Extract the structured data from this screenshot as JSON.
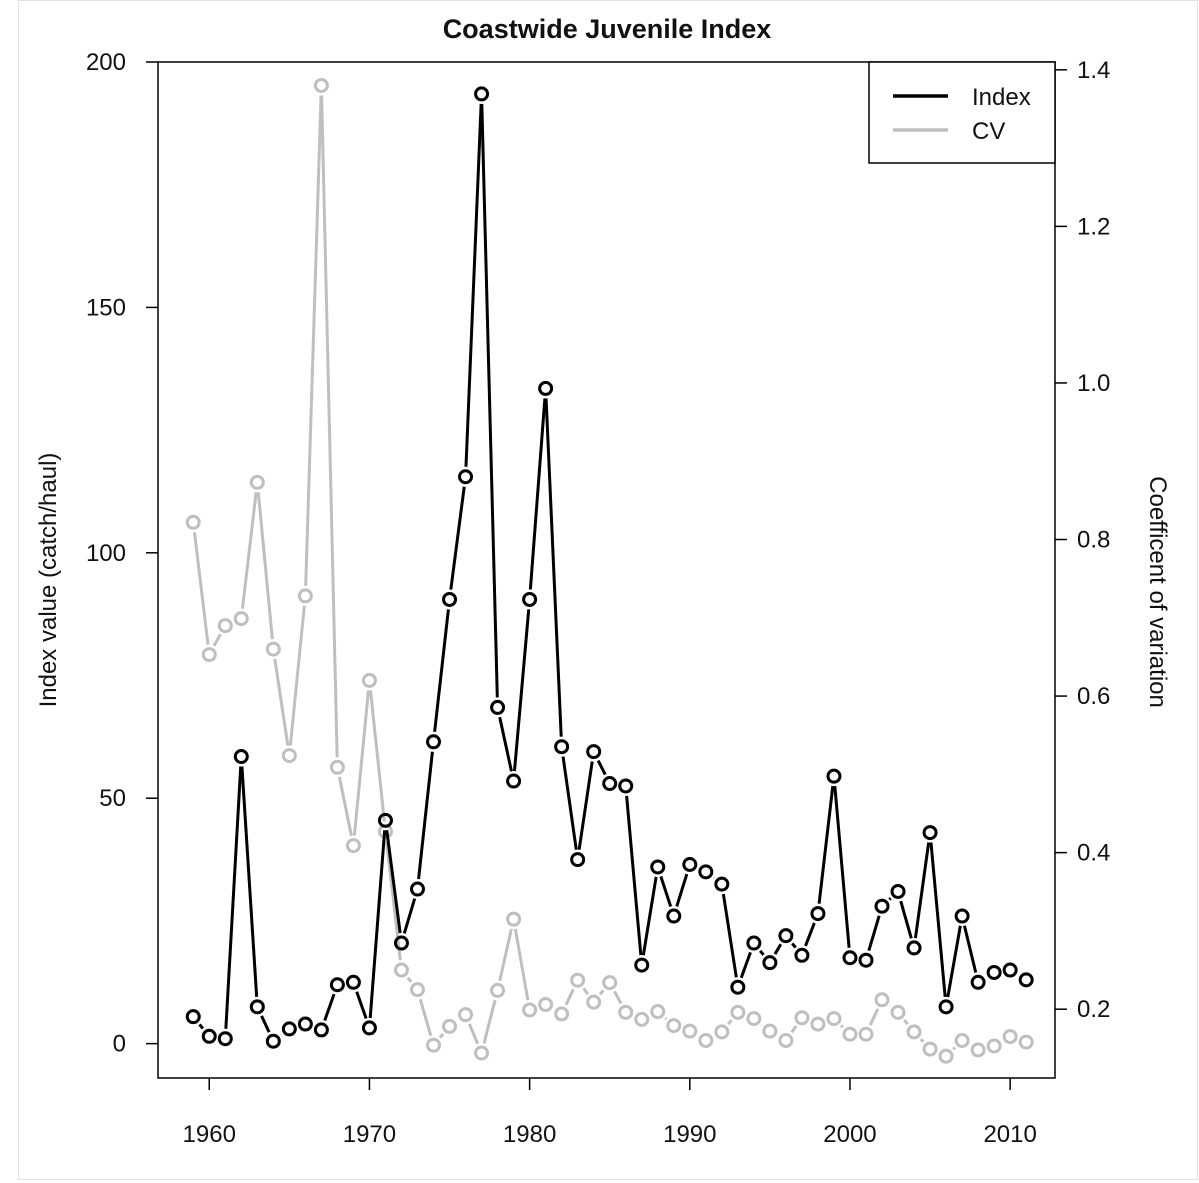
{
  "chart_data": {
    "type": "line",
    "title": "Coastwide Juvenile Index",
    "xlabel": "",
    "ylabel": "Index value (catch/haul)",
    "y2label": "Coefficent of variation",
    "xlim": [
      1956.8,
      2012.8
    ],
    "ylim": [
      -7,
      200
    ],
    "y2lim": [
      0.1121,
      1.41
    ],
    "x_ticks": [
      1960,
      1970,
      1980,
      1990,
      2000,
      2010
    ],
    "y_ticks": [
      0,
      50,
      100,
      150,
      200
    ],
    "y2_ticks": [
      0.2,
      0.4,
      0.6,
      0.8,
      1.0,
      1.2,
      1.4
    ],
    "y2_tick_labels": [
      "0.2",
      "0.4",
      "0.6",
      "0.8",
      "1.0",
      "1.2",
      "1.4"
    ],
    "legend_position": "top-right",
    "x": [
      1959,
      1960,
      1961,
      1962,
      1963,
      1964,
      1965,
      1966,
      1967,
      1968,
      1969,
      1970,
      1971,
      1972,
      1973,
      1974,
      1975,
      1976,
      1977,
      1978,
      1979,
      1980,
      1981,
      1982,
      1983,
      1984,
      1985,
      1986,
      1987,
      1988,
      1989,
      1990,
      1991,
      1992,
      1993,
      1994,
      1995,
      1996,
      1997,
      1998,
      1999,
      2000,
      2001,
      2002,
      2003,
      2004,
      2005,
      2006,
      2007,
      2008,
      2009,
      2010,
      2011
    ],
    "series": [
      {
        "name": "Index",
        "axis": "left",
        "color": "#000000",
        "values": [
          5.5,
          1.5,
          1,
          58.5,
          7.5,
          0.5,
          3,
          4,
          2.8,
          12,
          12.5,
          3.2,
          45.5,
          20.5,
          31.5,
          61.5,
          90.5,
          115.5,
          193.5,
          68.5,
          53.5,
          90.5,
          133.5,
          60.5,
          37.5,
          59.5,
          53,
          52.5,
          16,
          36,
          26,
          36.5,
          35,
          32.5,
          11.5,
          20.5,
          16.5,
          22,
          18,
          26.5,
          54.5,
          17.5,
          17,
          28,
          31,
          19.5,
          43,
          7.5,
          26,
          12.5,
          14.5,
          15,
          13
        ]
      },
      {
        "name": "CV",
        "axis": "right",
        "color": "#bfbfbf",
        "values": [
          0.822,
          0.653,
          0.69,
          0.699,
          0.873,
          0.66,
          0.524,
          0.728,
          1.38,
          0.509,
          0.409,
          0.62,
          0.427,
          0.25,
          0.225,
          0.154,
          0.178,
          0.193,
          0.144,
          0.224,
          0.315,
          0.199,
          0.206,
          0.194,
          0.237,
          0.209,
          0.234,
          0.196,
          0.187,
          0.197,
          0.179,
          0.172,
          0.16,
          0.171,
          0.196,
          0.188,
          0.172,
          0.16,
          0.189,
          0.181,
          0.188,
          0.168,
          0.168,
          0.212,
          0.196,
          0.171,
          0.149,
          0.14,
          0.16,
          0.148,
          0.153,
          0.165,
          0.158
        ]
      }
    ]
  }
}
